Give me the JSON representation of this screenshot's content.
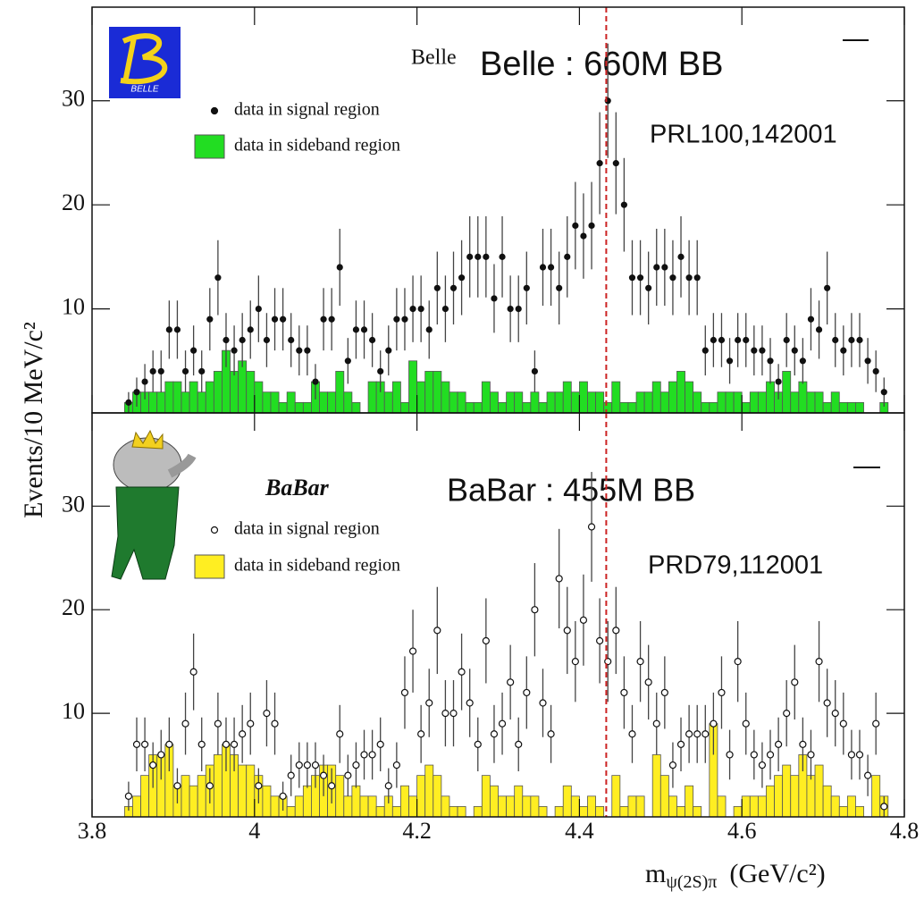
{
  "chart_data": [
    {
      "type": "histogram-scatter",
      "detector": "Belle",
      "annotations": [
        "Belle : 660M BB",
        "PRL100,142001"
      ],
      "logo_text": "BELLE",
      "y_label": "Events/10 MeV/c²",
      "xlim": [
        3.8,
        4.8
      ],
      "xticks": [
        3.8,
        4,
        4.2,
        4.4,
        4.6,
        4.8
      ],
      "ylim": [
        0,
        39
      ],
      "yticks": [
        10,
        20,
        30
      ],
      "reference_line": 4.433,
      "reference_color": "#cc2222",
      "series": [
        {
          "name": "data in signal region",
          "kind": "points",
          "marker": "filled",
          "color": "#111111",
          "x": [
            3.845,
            3.855,
            3.865,
            3.875,
            3.885,
            3.895,
            3.905,
            3.915,
            3.925,
            3.935,
            3.945,
            3.955,
            3.965,
            3.975,
            3.985,
            3.995,
            4.005,
            4.015,
            4.025,
            4.035,
            4.045,
            4.055,
            4.065,
            4.075,
            4.085,
            4.095,
            4.105,
            4.115,
            4.125,
            4.135,
            4.145,
            4.155,
            4.165,
            4.175,
            4.185,
            4.195,
            4.205,
            4.215,
            4.225,
            4.235,
            4.245,
            4.255,
            4.265,
            4.275,
            4.285,
            4.295,
            4.305,
            4.315,
            4.325,
            4.335,
            4.345,
            4.355,
            4.365,
            4.375,
            4.385,
            4.395,
            4.405,
            4.415,
            4.425,
            4.435,
            4.445,
            4.455,
            4.465,
            4.475,
            4.485,
            4.495,
            4.505,
            4.515,
            4.525,
            4.535,
            4.545,
            4.555,
            4.565,
            4.575,
            4.585,
            4.595,
            4.605,
            4.615,
            4.625,
            4.635,
            4.645,
            4.655,
            4.665,
            4.675,
            4.685,
            4.695,
            4.705,
            4.715,
            4.725,
            4.735,
            4.745,
            4.755,
            4.765,
            4.775
          ],
          "values": [
            1,
            2,
            3,
            4,
            4,
            8,
            8,
            4,
            6,
            4,
            9,
            13,
            7,
            6,
            7,
            8,
            10,
            7,
            9,
            9,
            7,
            6,
            6,
            3,
            9,
            9,
            14,
            5,
            8,
            8,
            7,
            4,
            6,
            9,
            9,
            10,
            10,
            8,
            12,
            10,
            12,
            13,
            15,
            15,
            15,
            11,
            15,
            10,
            10,
            12,
            4,
            14,
            14,
            12,
            15,
            18,
            17,
            18,
            24,
            30,
            24,
            20,
            13,
            13,
            12,
            14,
            14,
            13,
            15,
            13,
            13,
            6,
            7,
            7,
            5,
            7,
            7,
            6,
            6,
            5,
            3,
            7,
            6,
            5,
            9,
            8,
            12,
            7,
            6,
            7,
            7,
            5,
            4,
            2
          ],
          "errors": [
            1,
            1.4,
            1.7,
            2,
            2,
            2.8,
            2.8,
            2,
            2.4,
            2,
            3,
            3.6,
            2.6,
            2.4,
            2.6,
            2.8,
            3.2,
            2.6,
            3,
            3,
            2.6,
            2.4,
            2.4,
            1.7,
            3,
            3,
            3.7,
            2.2,
            2.8,
            2.8,
            2.6,
            2,
            2.4,
            3,
            3,
            3.2,
            3.2,
            2.8,
            3.5,
            3.2,
            3.5,
            3.6,
            3.9,
            3.9,
            3.9,
            3.3,
            3.9,
            3.2,
            3.2,
            3.5,
            2,
            3.7,
            3.7,
            3.5,
            3.9,
            4.2,
            4.1,
            4.2,
            4.9,
            5.5,
            4.9,
            4.5,
            3.6,
            3.6,
            3.5,
            3.7,
            3.7,
            3.6,
            3.9,
            3.6,
            3.6,
            2.4,
            2.6,
            2.6,
            2.2,
            2.6,
            2.6,
            2.4,
            2.4,
            2.2,
            1.7,
            2.6,
            2.4,
            2.2,
            3,
            2.8,
            3.5,
            2.6,
            2.4,
            2.6,
            2.6,
            2.2,
            2,
            1.4
          ]
        },
        {
          "name": "data in sideband region",
          "kind": "histogram",
          "color": "#22dd22",
          "bins": [
            3.84,
            3.85,
            3.86,
            3.87,
            3.88,
            3.89,
            3.9,
            3.91,
            3.92,
            3.93,
            3.94,
            3.95,
            3.96,
            3.97,
            3.98,
            3.99,
            4,
            4.01,
            4.02,
            4.03,
            4.04,
            4.05,
            4.06,
            4.07,
            4.08,
            4.09,
            4.1,
            4.11,
            4.12,
            4.13,
            4.14,
            4.15,
            4.16,
            4.17,
            4.18,
            4.19,
            4.2,
            4.21,
            4.22,
            4.23,
            4.24,
            4.25,
            4.26,
            4.27,
            4.28,
            4.29,
            4.3,
            4.31,
            4.32,
            4.33,
            4.34,
            4.35,
            4.36,
            4.37,
            4.38,
            4.39,
            4.4,
            4.41,
            4.42,
            4.43,
            4.44,
            4.45,
            4.46,
            4.47,
            4.48,
            4.49,
            4.5,
            4.51,
            4.52,
            4.53,
            4.54,
            4.55,
            4.56,
            4.57,
            4.58,
            4.59,
            4.6,
            4.61,
            4.62,
            4.63,
            4.64,
            4.65,
            4.66,
            4.67,
            4.68,
            4.69,
            4.7,
            4.71,
            4.72,
            4.73,
            4.74,
            4.75,
            4.76,
            4.77,
            4.78
          ],
          "values": [
            1,
            2,
            2,
            2,
            2,
            3,
            3,
            2,
            3,
            2,
            3,
            4,
            6,
            4,
            5,
            4,
            3,
            2,
            2,
            1,
            2,
            1,
            1,
            3,
            2,
            2,
            4,
            2,
            1,
            0,
            3,
            3,
            2,
            3,
            1,
            5,
            3,
            4,
            4,
            3,
            2,
            2,
            1,
            1,
            3,
            2,
            1,
            2,
            2,
            1,
            2,
            1,
            2,
            2,
            3,
            2,
            3,
            2,
            2,
            1,
            3,
            1,
            1,
            2,
            2,
            3,
            2,
            3,
            4,
            3,
            2,
            1,
            1,
            2,
            2,
            2,
            1,
            2,
            2,
            3,
            2,
            4,
            2,
            3,
            2,
            2,
            1,
            2,
            1,
            1,
            1,
            0,
            0,
            1
          ]
        }
      ]
    },
    {
      "type": "histogram-scatter",
      "detector": "BaBar",
      "annotations": [
        "BaBar : 455M BB",
        "PRD79,112001"
      ],
      "x_label": "m",
      "x_label_sub": "ψ(2S)π",
      "x_label_unit": "(GeV/c²)",
      "xlim": [
        3.8,
        4.8
      ],
      "xticks": [
        3.8,
        4,
        4.2,
        4.4,
        4.6,
        4.8
      ],
      "ylim": [
        0,
        39
      ],
      "yticks": [
        10,
        20,
        30
      ],
      "reference_line": 4.433,
      "reference_color": "#cc2222",
      "series": [
        {
          "name": "data in signal region",
          "kind": "points",
          "marker": "open",
          "color": "#111111",
          "x": [
            3.845,
            3.855,
            3.865,
            3.875,
            3.885,
            3.895,
            3.905,
            3.915,
            3.925,
            3.935,
            3.945,
            3.955,
            3.965,
            3.975,
            3.985,
            3.995,
            4.005,
            4.015,
            4.025,
            4.035,
            4.045,
            4.055,
            4.065,
            4.075,
            4.085,
            4.095,
            4.105,
            4.115,
            4.125,
            4.135,
            4.145,
            4.155,
            4.165,
            4.175,
            4.185,
            4.195,
            4.205,
            4.215,
            4.225,
            4.235,
            4.245,
            4.255,
            4.265,
            4.275,
            4.285,
            4.295,
            4.305,
            4.315,
            4.325,
            4.335,
            4.345,
            4.355,
            4.365,
            4.375,
            4.385,
            4.395,
            4.405,
            4.415,
            4.425,
            4.435,
            4.445,
            4.455,
            4.465,
            4.475,
            4.485,
            4.495,
            4.505,
            4.515,
            4.525,
            4.535,
            4.545,
            4.555,
            4.565,
            4.575,
            4.585,
            4.595,
            4.605,
            4.615,
            4.625,
            4.635,
            4.645,
            4.655,
            4.665,
            4.675,
            4.685,
            4.695,
            4.705,
            4.715,
            4.725,
            4.735,
            4.745,
            4.755,
            4.765,
            4.775
          ],
          "values": [
            2,
            7,
            7,
            5,
            6,
            7,
            3,
            9,
            14,
            7,
            3,
            9,
            7,
            7,
            8,
            9,
            3,
            10,
            9,
            2,
            4,
            5,
            5,
            5,
            4,
            3,
            8,
            4,
            5,
            6,
            6,
            7,
            3,
            5,
            12,
            16,
            8,
            11,
            18,
            10,
            10,
            14,
            11,
            7,
            17,
            8,
            9,
            13,
            7,
            12,
            20,
            11,
            8,
            23,
            18,
            15,
            19,
            28,
            17,
            15,
            18,
            12,
            8,
            15,
            13,
            9,
            12,
            5,
            7,
            8,
            8,
            8,
            9,
            12,
            6,
            15,
            9,
            6,
            5,
            6,
            7,
            10,
            13,
            7,
            6,
            15,
            11,
            10,
            9,
            6,
            6,
            4,
            9,
            1
          ],
          "errors": [
            1.4,
            2.6,
            2.6,
            2.2,
            2.4,
            2.6,
            1.7,
            3,
            3.7,
            2.6,
            1.7,
            3,
            2.6,
            2.6,
            2.8,
            3,
            1.7,
            3.2,
            3,
            1.4,
            2,
            2.2,
            2.2,
            2.2,
            2,
            1.7,
            2.8,
            2,
            2.2,
            2.4,
            2.4,
            2.6,
            1.7,
            2.2,
            3.5,
            4,
            2.8,
            3.3,
            4.2,
            3.2,
            3.2,
            3.7,
            3.3,
            2.6,
            4.1,
            2.8,
            3,
            3.6,
            2.6,
            3.5,
            4.5,
            3.3,
            2.8,
            4.8,
            4.2,
            3.9,
            4.4,
            5.3,
            4.1,
            3.9,
            4.2,
            3.5,
            2.8,
            3.9,
            3.6,
            3,
            3.5,
            2.2,
            2.6,
            2.8,
            2.8,
            2.8,
            3,
            3.5,
            2.4,
            3.9,
            3,
            2.4,
            2.2,
            2.4,
            2.6,
            3.2,
            3.6,
            2.6,
            2.4,
            3.9,
            3.3,
            3.2,
            3,
            2.4,
            2.4,
            2,
            3,
            1
          ]
        },
        {
          "name": "data in sideband region",
          "kind": "histogram",
          "color": "#ffee22",
          "bins": [
            3.84,
            3.85,
            3.86,
            3.87,
            3.88,
            3.89,
            3.9,
            3.91,
            3.92,
            3.93,
            3.94,
            3.95,
            3.96,
            3.97,
            3.98,
            3.99,
            4,
            4.01,
            4.02,
            4.03,
            4.04,
            4.05,
            4.06,
            4.07,
            4.08,
            4.09,
            4.1,
            4.11,
            4.12,
            4.13,
            4.14,
            4.15,
            4.16,
            4.17,
            4.18,
            4.19,
            4.2,
            4.21,
            4.22,
            4.23,
            4.24,
            4.25,
            4.26,
            4.27,
            4.28,
            4.29,
            4.3,
            4.31,
            4.32,
            4.33,
            4.34,
            4.35,
            4.36,
            4.37,
            4.38,
            4.39,
            4.4,
            4.41,
            4.42,
            4.43,
            4.44,
            4.45,
            4.46,
            4.47,
            4.48,
            4.49,
            4.5,
            4.51,
            4.52,
            4.53,
            4.54,
            4.55,
            4.56,
            4.57,
            4.58,
            4.59,
            4.6,
            4.61,
            4.62,
            4.63,
            4.64,
            4.65,
            4.66,
            4.67,
            4.68,
            4.69,
            4.7,
            4.71,
            4.72,
            4.73,
            4.74,
            4.75,
            4.76,
            4.77,
            4.78
          ],
          "values": [
            1,
            2,
            4,
            6,
            6,
            7,
            3,
            4,
            3,
            4,
            5,
            6,
            7,
            6,
            5,
            5,
            4,
            3,
            2,
            2,
            1,
            2,
            3,
            4,
            5,
            5,
            4,
            2,
            3,
            2,
            2,
            1,
            2,
            1,
            3,
            2,
            4,
            5,
            4,
            2,
            1,
            1,
            0,
            1,
            4,
            3,
            2,
            2,
            3,
            2,
            2,
            1,
            0,
            1,
            3,
            2,
            1,
            2,
            1,
            0,
            4,
            1,
            2,
            2,
            0,
            6,
            4,
            2,
            1,
            3,
            1,
            0,
            9,
            2,
            0,
            1,
            2,
            2,
            2,
            3,
            4,
            5,
            4,
            6,
            4,
            5,
            3,
            2,
            1,
            2,
            1,
            0,
            4,
            2
          ]
        }
      ]
    }
  ]
}
